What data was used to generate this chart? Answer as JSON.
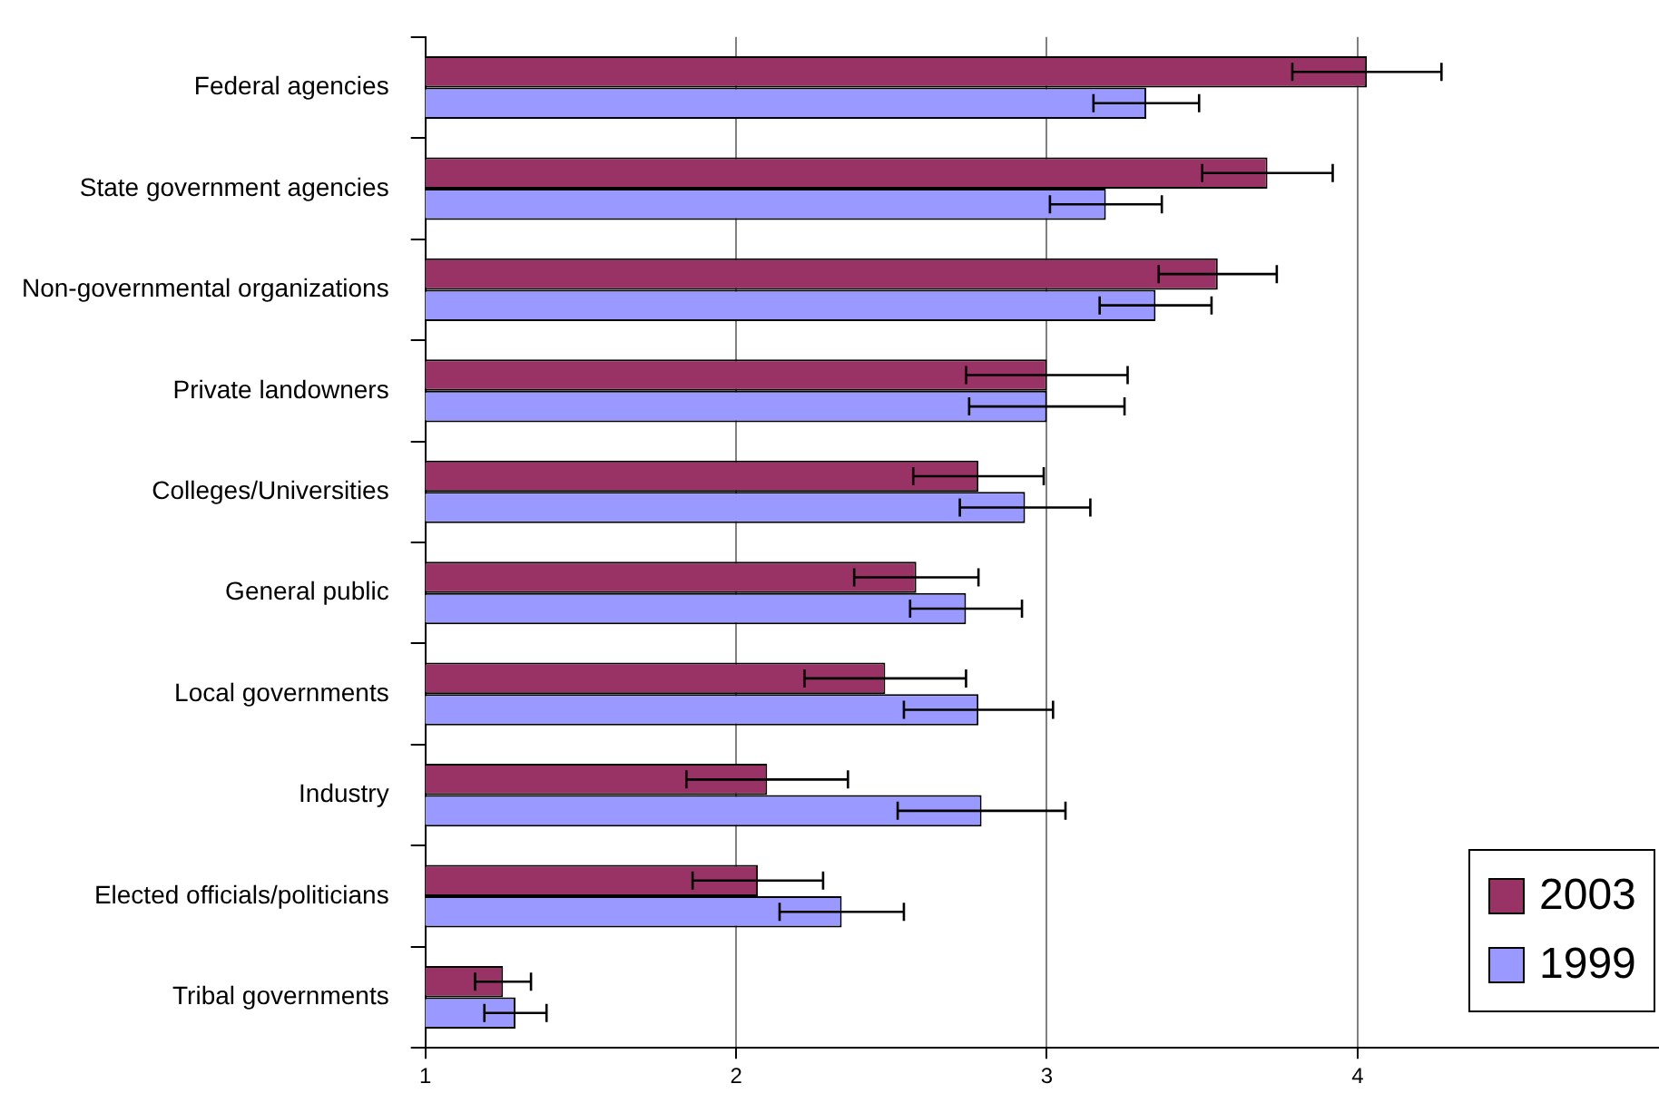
{
  "chart_data": {
    "type": "bar",
    "orientation": "horizontal",
    "categories": [
      "Federal agencies",
      "State government agencies",
      "Non-governmental organizations",
      "Private landowners",
      "Colleges/Universities",
      "General public",
      "Local governments",
      "Industry",
      "Elected officials/politicians",
      "Tribal governments"
    ],
    "series": [
      {
        "name": "2003",
        "color": "#993366",
        "values": [
          4.03,
          3.71,
          3.55,
          3.0,
          2.78,
          2.58,
          2.48,
          2.1,
          2.07,
          1.25
        ],
        "errors": [
          0.24,
          0.21,
          0.19,
          0.26,
          0.21,
          0.2,
          0.26,
          0.26,
          0.21,
          0.09
        ]
      },
      {
        "name": "1999",
        "color": "#9999ff",
        "values": [
          3.32,
          3.19,
          3.35,
          3.0,
          2.93,
          2.74,
          2.78,
          2.79,
          2.34,
          1.29
        ],
        "errors": [
          0.17,
          0.18,
          0.18,
          0.25,
          0.21,
          0.18,
          0.24,
          0.27,
          0.2,
          0.1
        ]
      }
    ],
    "xlim": [
      1,
      4.97
    ],
    "xticks": [
      1,
      2,
      3,
      4
    ],
    "grid": "x",
    "legend": "bottom right"
  }
}
